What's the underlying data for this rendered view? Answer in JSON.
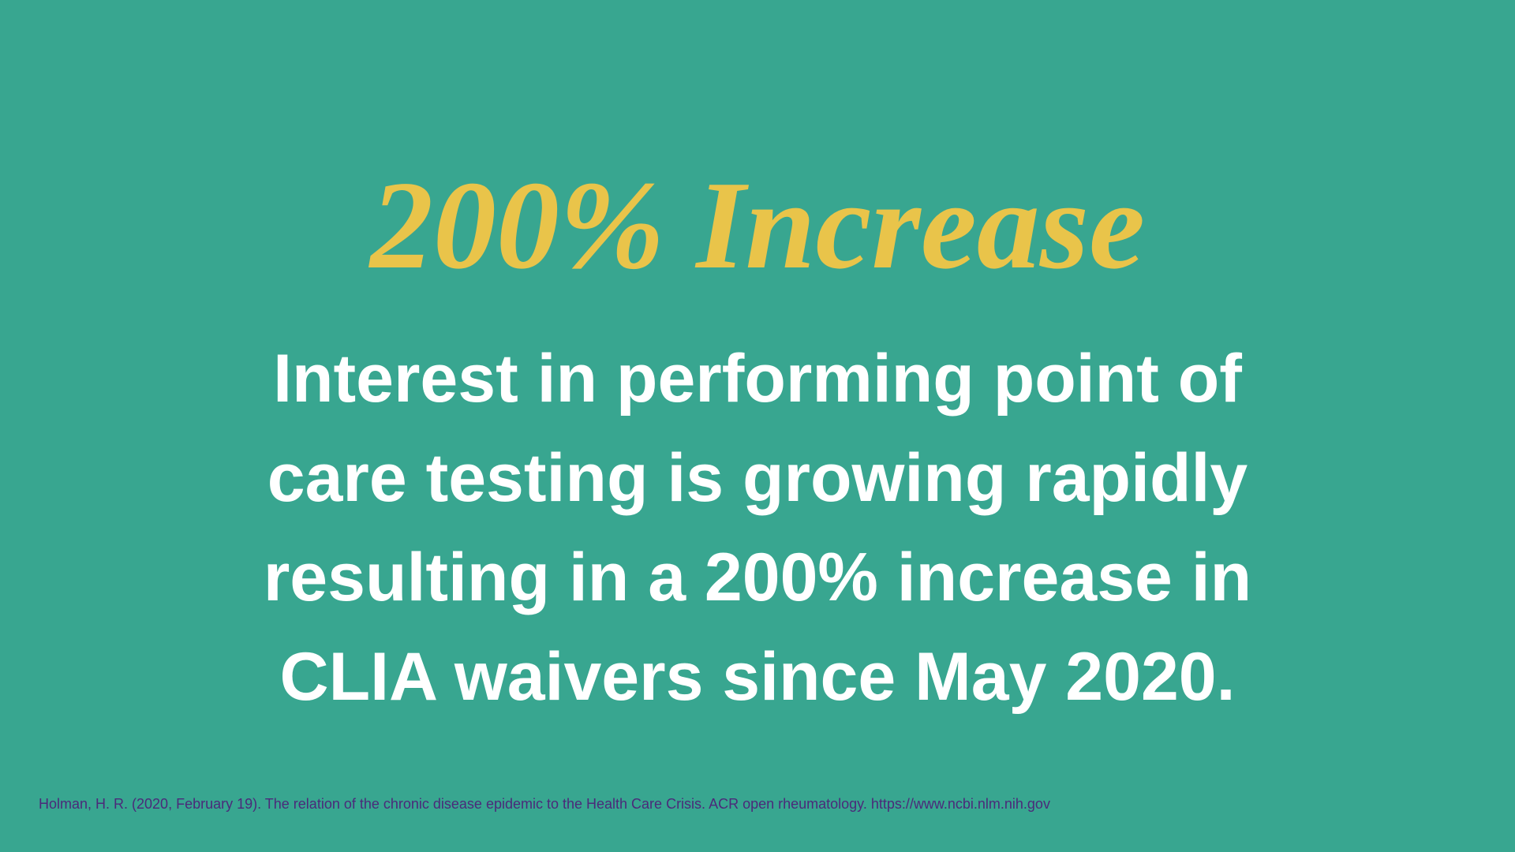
{
  "title": "200% Increase",
  "body_lines": [
    "Interest in performing point of",
    "care testing is growing rapidly",
    "resulting in a 200% increase in",
    "CLIA waivers since May 2020."
  ],
  "citation": "Holman, H. R. (2020, February 19). The relation of the chronic disease epidemic to the Health Care Crisis. ACR open rheumatology. https://www.ncbi.nlm.nih.gov"
}
